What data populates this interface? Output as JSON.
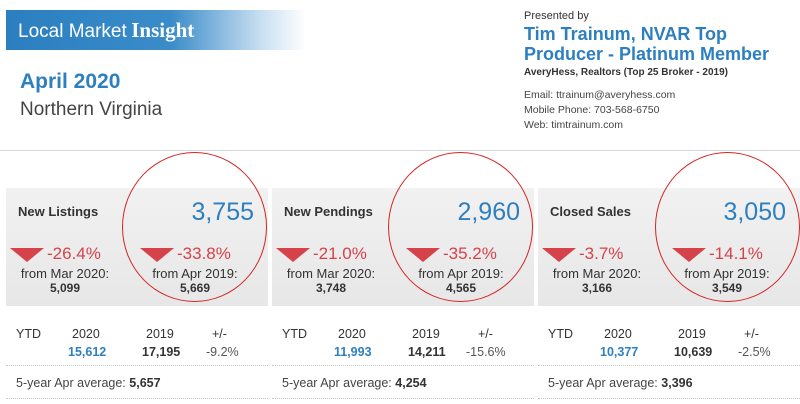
{
  "header": {
    "banner_light": "Local Market",
    "banner_bold": "Insight",
    "month": "April 2020",
    "region": "Northern Virginia"
  },
  "presenter": {
    "presented_by": "Presented by",
    "agent": "Tim Trainum, NVAR Top Producer - Platinum Member",
    "broker": "AveryHess, Realtors (Top 25 Broker - 2019)",
    "email": "Email: ttrainum@averyhess.com",
    "phone": "Mobile Phone: 703-568-6750",
    "web": "Web: timtrainum.com"
  },
  "colors": {
    "accent": "#2d7fc0",
    "decline": "#d6424a",
    "annotation_circle": "#d62424"
  },
  "cards": [
    {
      "label": "New Listings",
      "value": "3,755",
      "mom_pct": "-26.4%",
      "mom_label": "from Mar 2020:",
      "mom_value": "5,099",
      "yoy_pct": "-33.8%",
      "yoy_label": "from Apr 2019:",
      "yoy_value": "5,669",
      "ytd_label": "YTD",
      "ytd_year_a": "2020",
      "ytd_year_b": "2019",
      "ytd_change_label": "+/-",
      "ytd_value_a": "15,612",
      "ytd_value_b": "17,195",
      "ytd_change": "-9.2%",
      "avg_label": "5-year Apr average:",
      "avg_value": "5,657"
    },
    {
      "label": "New Pendings",
      "value": "2,960",
      "mom_pct": "-21.0%",
      "mom_label": "from Mar 2020:",
      "mom_value": "3,748",
      "yoy_pct": "-35.2%",
      "yoy_label": "from Apr 2019:",
      "yoy_value": "4,565",
      "ytd_label": "YTD",
      "ytd_year_a": "2020",
      "ytd_year_b": "2019",
      "ytd_change_label": "+/-",
      "ytd_value_a": "11,993",
      "ytd_value_b": "14,211",
      "ytd_change": "-15.6%",
      "avg_label": "5-year Apr average:",
      "avg_value": "4,254"
    },
    {
      "label": "Closed Sales",
      "value": "3,050",
      "mom_pct": "-3.7%",
      "mom_label": "from Mar 2020:",
      "mom_value": "3,166",
      "yoy_pct": "-14.1%",
      "yoy_label": "from Apr 2019:",
      "yoy_value": "3,549",
      "ytd_label": "YTD",
      "ytd_year_a": "2020",
      "ytd_year_b": "2019",
      "ytd_change_label": "+/-",
      "ytd_value_a": "10,377",
      "ytd_value_b": "10,639",
      "ytd_change": "-2.5%",
      "avg_label": "5-year Apr average:",
      "avg_value": "3,396"
    }
  ]
}
